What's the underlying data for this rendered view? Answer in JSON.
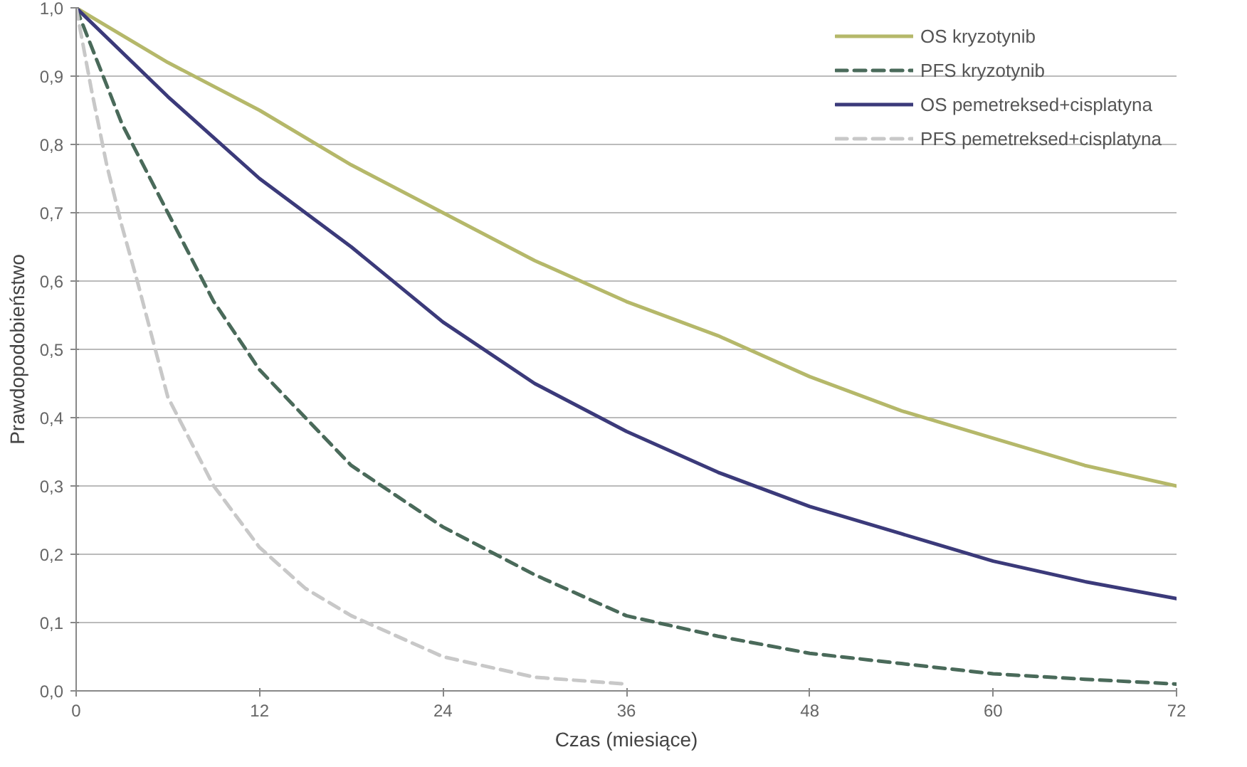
{
  "chart_data": {
    "type": "line",
    "xlabel": "Czas (miesiące)",
    "ylabel": "Prawdopodobieństwo",
    "xlim": [
      0,
      72
    ],
    "ylim": [
      0,
      1
    ],
    "xticks": [
      0,
      12,
      24,
      36,
      48,
      60,
      72
    ],
    "yticks": [
      {
        "value": 0,
        "label": "0,0"
      },
      {
        "value": 0.1,
        "label": "0,1"
      },
      {
        "value": 0.2,
        "label": "0,2"
      },
      {
        "value": 0.3,
        "label": "0,3"
      },
      {
        "value": 0.4,
        "label": "0,4"
      },
      {
        "value": 0.5,
        "label": "0,5"
      },
      {
        "value": 0.6,
        "label": "0,6"
      },
      {
        "value": 0.7,
        "label": "0,7"
      },
      {
        "value": 0.8,
        "label": "0,8"
      },
      {
        "value": 0.9,
        "label": "0,9"
      },
      {
        "value": 1,
        "label": "1,0"
      }
    ],
    "grid": "y",
    "legend": "top right",
    "marker": "none",
    "series": [
      {
        "name": "OS kryzotynib",
        "color": "#b5b86a",
        "line_style": "solid",
        "x": [
          0,
          6,
          12,
          18,
          24,
          30,
          36,
          42,
          48,
          54,
          60,
          66,
          72
        ],
        "values": [
          1.0,
          0.92,
          0.85,
          0.77,
          0.7,
          0.63,
          0.57,
          0.52,
          0.46,
          0.41,
          0.37,
          0.33,
          0.3
        ]
      },
      {
        "name": "PFS kryzotynib",
        "color": "#4a6a5a",
        "line_style": "dashed",
        "x": [
          0,
          3,
          6,
          9,
          12,
          18,
          24,
          30,
          36,
          42,
          48,
          54,
          60,
          66,
          72
        ],
        "values": [
          1.0,
          0.83,
          0.7,
          0.57,
          0.47,
          0.33,
          0.24,
          0.17,
          0.11,
          0.08,
          0.055,
          0.04,
          0.025,
          0.017,
          0.01
        ]
      },
      {
        "name": "OS pemetreksed+cisplatyna",
        "color": "#3b3a7a",
        "line_style": "solid",
        "x": [
          0,
          6,
          12,
          18,
          24,
          30,
          36,
          42,
          48,
          54,
          60,
          66,
          72
        ],
        "values": [
          1.0,
          0.87,
          0.75,
          0.65,
          0.54,
          0.45,
          0.38,
          0.32,
          0.27,
          0.23,
          0.19,
          0.16,
          0.135
        ]
      },
      {
        "name": "PFS pemetreksed+cisplatyna",
        "color": "#c8c8c8",
        "line_style": "dashed",
        "x": [
          0,
          1,
          2,
          3,
          4,
          6,
          9,
          12,
          15,
          18,
          24,
          30,
          36
        ],
        "values": [
          1.0,
          0.88,
          0.77,
          0.68,
          0.6,
          0.43,
          0.3,
          0.21,
          0.15,
          0.11,
          0.05,
          0.02,
          0.01
        ]
      }
    ]
  }
}
